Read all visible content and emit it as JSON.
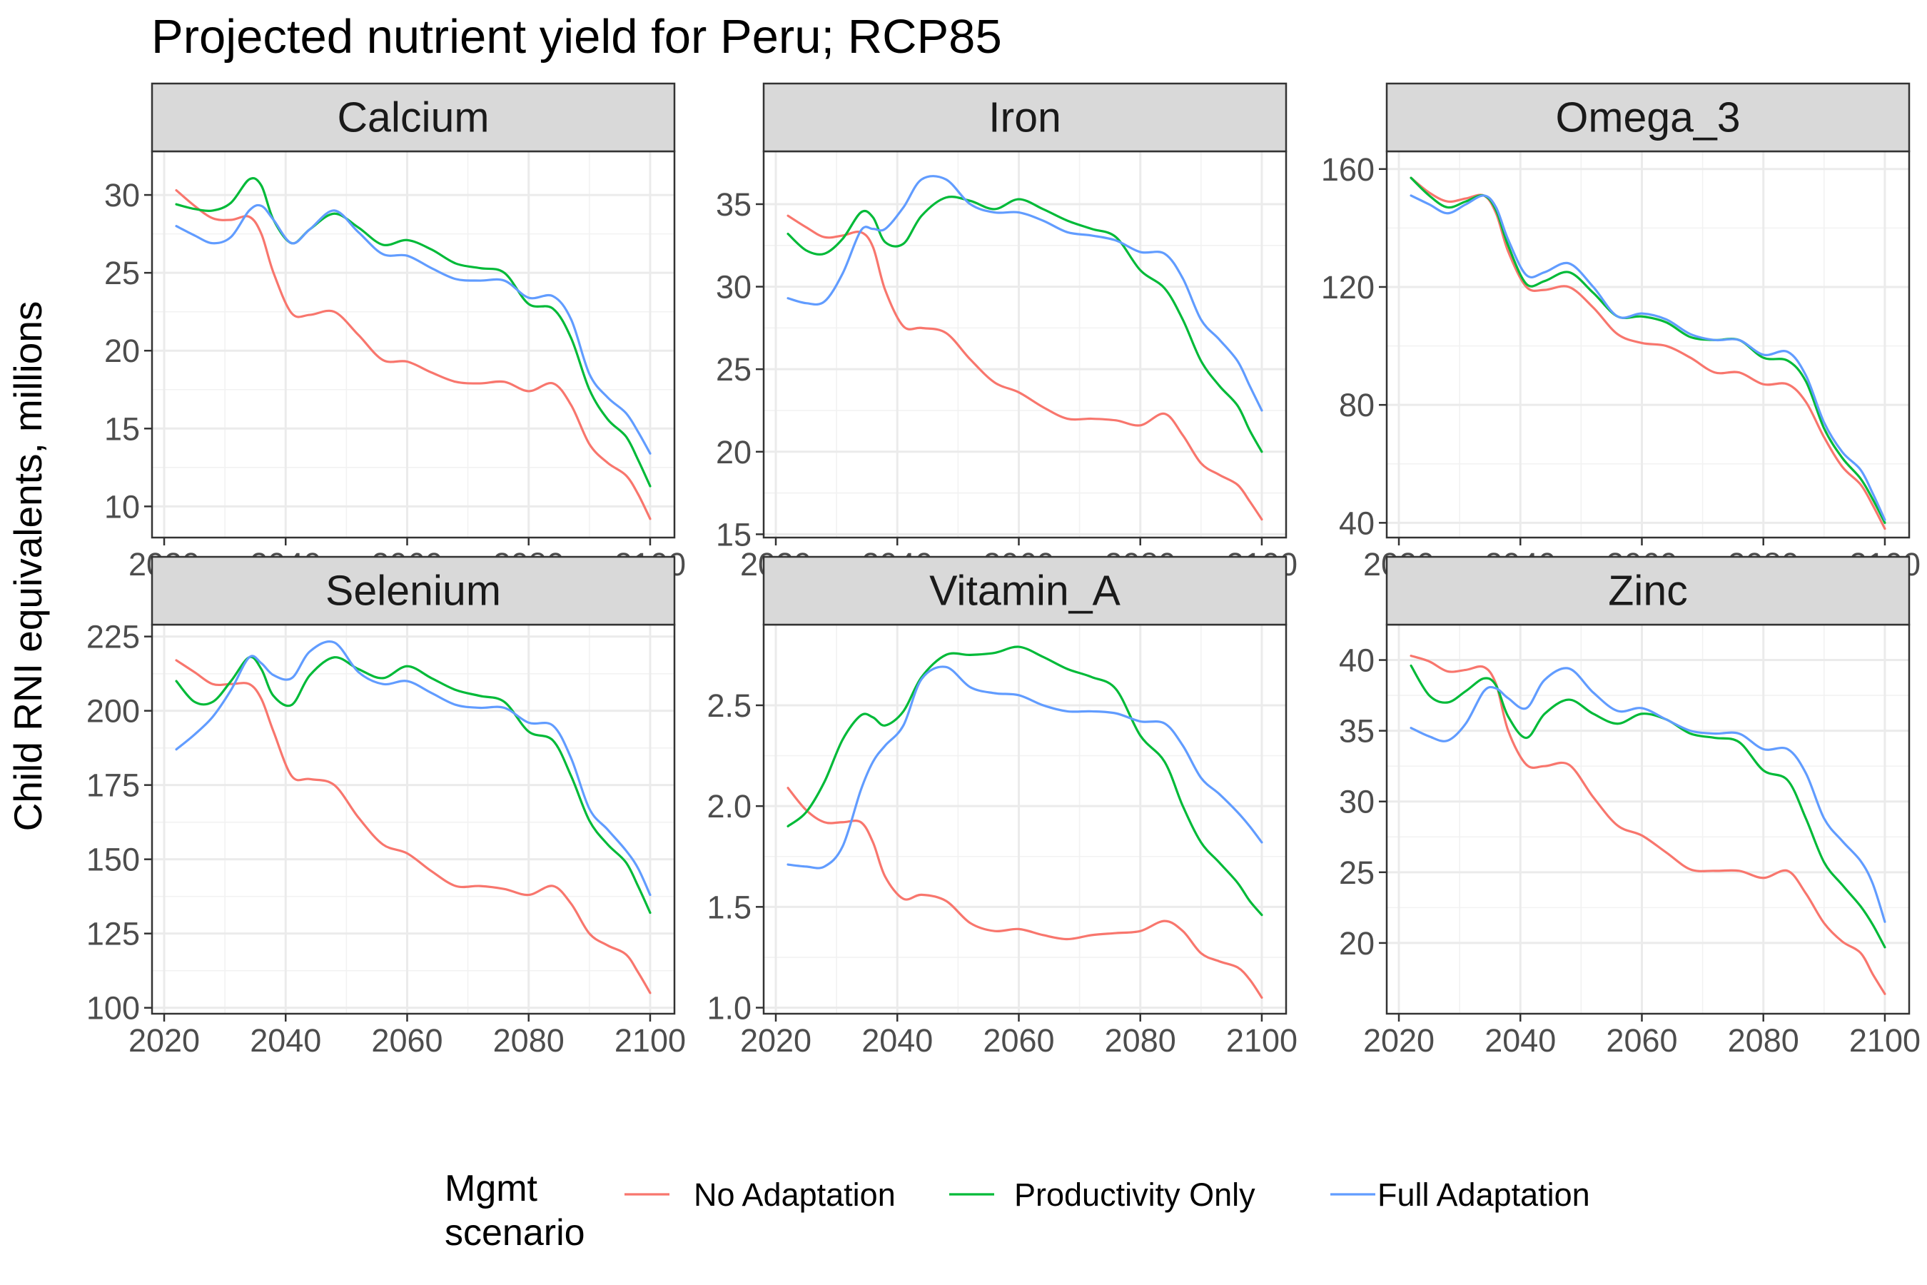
{
  "title": "Projected nutrient yield for Peru; RCP85",
  "ylabel": "Child RNI equivalents, millions",
  "legend": {
    "title_line1": "Mgmt",
    "title_line2": "scenario",
    "placement": "bottom",
    "items": [
      {
        "name": "No Adaptation",
        "color": "#F8766D"
      },
      {
        "name": "Productivity Only",
        "color": "#00BA38"
      },
      {
        "name": "Full Adaptation",
        "color": "#619CFF"
      }
    ]
  },
  "chart_data": {
    "type": "line",
    "facet_layout": "3 columns x 2 rows, free y scales",
    "x_ticks": [
      2020,
      2040,
      2060,
      2080,
      2100
    ],
    "xlim": [
      2018,
      2104
    ],
    "grid": true,
    "panels": [
      {
        "name": "Calcium",
        "ylim": [
          8,
          32.8
        ],
        "y_ticks": [
          10,
          15,
          20,
          25,
          30
        ],
        "x": [
          2022,
          2025,
          2028,
          2031,
          2034,
          2036,
          2038,
          2041,
          2044,
          2048,
          2052,
          2056,
          2060,
          2064,
          2068,
          2072,
          2076,
          2080,
          2084,
          2087,
          2090,
          2093,
          2096,
          2098,
          2100
        ],
        "series": [
          {
            "name": "No Adaptation",
            "values": [
              30.3,
              29.3,
              28.5,
              28.4,
              28.6,
              27.5,
              25.0,
              22.4,
              22.3,
              22.5,
              21.0,
              19.4,
              19.3,
              18.6,
              18.0,
              17.9,
              18.0,
              17.4,
              17.9,
              16.5,
              14.0,
              12.8,
              12.0,
              10.8,
              9.2
            ]
          },
          {
            "name": "Productivity Only",
            "values": [
              29.4,
              29.1,
              29.0,
              29.5,
              31.0,
              30.6,
              28.4,
              26.9,
              27.8,
              28.8,
              27.9,
              26.8,
              27.1,
              26.5,
              25.6,
              25.3,
              25.0,
              23.0,
              22.7,
              20.8,
              17.5,
              15.6,
              14.5,
              13.0,
              11.3
            ]
          },
          {
            "name": "Full Adaptation",
            "values": [
              28.0,
              27.4,
              26.9,
              27.3,
              29.0,
              29.3,
              28.4,
              26.9,
              27.8,
              29.0,
              27.6,
              26.2,
              26.1,
              25.3,
              24.6,
              24.5,
              24.5,
              23.4,
              23.5,
              22.0,
              18.5,
              17.0,
              16.0,
              14.8,
              13.4
            ]
          }
        ]
      },
      {
        "name": "Iron",
        "ylim": [
          14.8,
          38.2
        ],
        "y_ticks": [
          15,
          20,
          25,
          30,
          35
        ],
        "x": [
          2022,
          2025,
          2028,
          2031,
          2034,
          2036,
          2038,
          2041,
          2044,
          2048,
          2052,
          2056,
          2060,
          2064,
          2068,
          2072,
          2076,
          2080,
          2084,
          2087,
          2090,
          2093,
          2096,
          2098,
          2100
        ],
        "series": [
          {
            "name": "No Adaptation",
            "values": [
              34.3,
              33.6,
              33.0,
              33.1,
              33.3,
              32.4,
              29.8,
              27.6,
              27.5,
              27.2,
              25.6,
              24.2,
              23.6,
              22.7,
              22.0,
              22.0,
              21.9,
              21.6,
              22.3,
              21.0,
              19.3,
              18.6,
              18.0,
              17.0,
              15.9
            ]
          },
          {
            "name": "Productivity Only",
            "values": [
              33.2,
              32.2,
              32.0,
              32.9,
              34.5,
              34.2,
              32.7,
              32.6,
              34.3,
              35.4,
              35.2,
              34.7,
              35.3,
              34.7,
              34.0,
              33.5,
              33.0,
              31.0,
              29.9,
              28.0,
              25.5,
              24.0,
              22.8,
              21.3,
              20.0
            ]
          },
          {
            "name": "Full Adaptation",
            "values": [
              29.3,
              29.0,
              29.1,
              30.8,
              33.4,
              33.5,
              33.5,
              34.8,
              36.5,
              36.5,
              35.0,
              34.5,
              34.5,
              34.0,
              33.3,
              33.1,
              32.8,
              32.1,
              32.0,
              30.5,
              28.0,
              26.8,
              25.5,
              24.0,
              22.5
            ]
          }
        ]
      },
      {
        "name": "Omega_3",
        "ylim": [
          35,
          166
        ],
        "y_ticks": [
          40,
          80,
          120,
          160
        ],
        "x": [
          2022,
          2025,
          2028,
          2031,
          2034,
          2036,
          2038,
          2041,
          2044,
          2048,
          2052,
          2056,
          2060,
          2064,
          2068,
          2072,
          2076,
          2080,
          2084,
          2087,
          2090,
          2093,
          2096,
          2098,
          2100
        ],
        "series": [
          {
            "name": "No Adaptation",
            "values": [
              157,
              152,
              149,
              150,
              151,
              145,
              132,
              120,
              119,
              120,
              113,
              104,
              101,
              100,
              96,
              91,
              91,
              87,
              87,
              81,
              69,
              59,
              53,
              46,
              38
            ]
          },
          {
            "name": "Productivity Only",
            "values": [
              157,
              151,
              147,
              149,
              151,
              146,
              134,
              121,
              122,
              125,
              118,
              110,
              110,
              108,
              103,
              102,
              102,
              96,
              95,
              88,
              72,
              62,
              55,
              48,
              40
            ]
          },
          {
            "name": "Full Adaptation",
            "values": [
              151,
              148,
              145,
              148,
              151,
              147,
              136,
              124,
              125,
              128,
              120,
              110,
              111,
              109,
              104,
              102,
              102,
              97,
              98,
              90,
              74,
              64,
              58,
              50,
              41
            ]
          }
        ]
      },
      {
        "name": "Selenium",
        "ylim": [
          98,
          229
        ],
        "y_ticks": [
          100,
          125,
          150,
          175,
          200,
          225
        ],
        "x": [
          2022,
          2025,
          2028,
          2031,
          2034,
          2036,
          2038,
          2041,
          2044,
          2048,
          2052,
          2056,
          2060,
          2064,
          2068,
          2072,
          2076,
          2080,
          2084,
          2087,
          2090,
          2093,
          2096,
          2098,
          2100
        ],
        "series": [
          {
            "name": "No Adaptation",
            "values": [
              217,
              213,
              209,
              209,
              209,
              204,
              193,
              178,
              177,
              175,
              164,
              155,
              152,
              146,
              141,
              141,
              140,
              138,
              141,
              135,
              125,
              121,
              118,
              112,
              105
            ]
          },
          {
            "name": "Productivity Only",
            "values": [
              210,
              203,
              203,
              210,
              218,
              214,
              205,
              202,
              212,
              218,
              214,
              211,
              215,
              211,
              207,
              205,
              203,
              193,
              190,
              178,
              163,
              155,
              149,
              141,
              132
            ]
          },
          {
            "name": "Full Adaptation",
            "values": [
              187,
              192,
              198,
              207,
              218,
              216,
              212,
              211,
              220,
              223,
              213,
              209,
              210,
              206,
              202,
              201,
              201,
              196,
              195,
              184,
              167,
              160,
              153,
              147,
              138
            ]
          }
        ]
      },
      {
        "name": "Vitamin_A",
        "ylim": [
          0.97,
          2.9
        ],
        "y_ticks": [
          1.0,
          1.5,
          2.0,
          2.5
        ],
        "y_tick_labels": [
          "1.0",
          "1.5",
          "2.0",
          "2.5"
        ],
        "x": [
          2022,
          2025,
          2028,
          2031,
          2034,
          2036,
          2038,
          2041,
          2044,
          2048,
          2052,
          2056,
          2060,
          2064,
          2068,
          2072,
          2076,
          2080,
          2084,
          2087,
          2090,
          2093,
          2096,
          2098,
          2100
        ],
        "series": [
          {
            "name": "No Adaptation",
            "values": [
              2.09,
              1.98,
              1.92,
              1.92,
              1.92,
              1.82,
              1.65,
              1.54,
              1.56,
              1.53,
              1.42,
              1.38,
              1.39,
              1.36,
              1.34,
              1.36,
              1.37,
              1.38,
              1.43,
              1.38,
              1.27,
              1.23,
              1.2,
              1.14,
              1.05
            ]
          },
          {
            "name": "Productivity Only",
            "values": [
              1.9,
              1.97,
              2.12,
              2.33,
              2.45,
              2.44,
              2.4,
              2.47,
              2.64,
              2.75,
              2.75,
              2.76,
              2.79,
              2.74,
              2.68,
              2.64,
              2.58,
              2.35,
              2.22,
              2.0,
              1.82,
              1.72,
              1.62,
              1.53,
              1.46
            ]
          },
          {
            "name": "Full Adaptation",
            "values": [
              1.71,
              1.7,
              1.7,
              1.8,
              2.08,
              2.22,
              2.3,
              2.4,
              2.63,
              2.69,
              2.59,
              2.56,
              2.55,
              2.5,
              2.47,
              2.47,
              2.46,
              2.42,
              2.41,
              2.3,
              2.14,
              2.06,
              1.97,
              1.9,
              1.82
            ]
          }
        ]
      },
      {
        "name": "Zinc",
        "ylim": [
          15,
          42.5
        ],
        "y_ticks": [
          20,
          25,
          30,
          35,
          40
        ],
        "x": [
          2022,
          2025,
          2028,
          2031,
          2034,
          2036,
          2038,
          2041,
          2044,
          2048,
          2052,
          2056,
          2060,
          2064,
          2068,
          2072,
          2076,
          2080,
          2084,
          2087,
          2090,
          2093,
          2096,
          2098,
          2100
        ],
        "series": [
          {
            "name": "No Adaptation",
            "values": [
              40.3,
              39.9,
              39.2,
              39.3,
              39.5,
              38.3,
              35.0,
              32.6,
              32.5,
              32.6,
              30.3,
              28.3,
              27.6,
              26.4,
              25.2,
              25.1,
              25.1,
              24.6,
              25.1,
              23.5,
              21.4,
              20.1,
              19.3,
              17.8,
              16.4
            ]
          },
          {
            "name": "Productivity Only",
            "values": [
              39.6,
              37.5,
              37.0,
              37.8,
              38.7,
              38.2,
              36.0,
              34.5,
              36.2,
              37.2,
              36.2,
              35.5,
              36.2,
              35.8,
              34.8,
              34.5,
              34.2,
              32.2,
              31.5,
              28.8,
              25.7,
              24.1,
              22.6,
              21.3,
              19.7
            ]
          },
          {
            "name": "Full Adaptation",
            "values": [
              35.2,
              34.6,
              34.3,
              35.5,
              37.8,
              38.0,
              37.3,
              36.6,
              38.6,
              39.4,
              37.7,
              36.4,
              36.6,
              35.8,
              35.0,
              34.8,
              34.8,
              33.7,
              33.7,
              32.0,
              28.8,
              27.2,
              25.8,
              24.2,
              21.5
            ]
          }
        ]
      }
    ]
  }
}
